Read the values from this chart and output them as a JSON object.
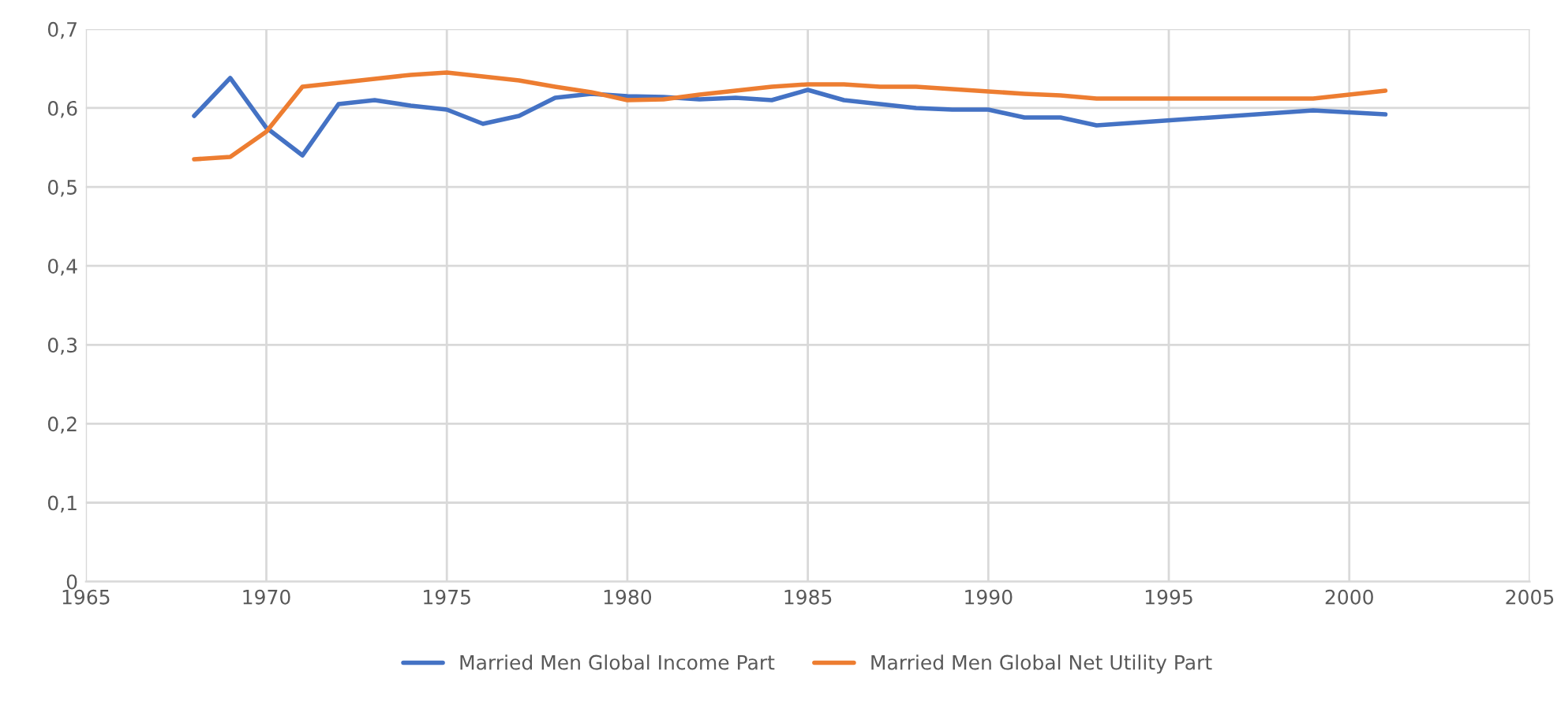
{
  "chart_data": {
    "type": "line",
    "xlim": [
      1965,
      2005
    ],
    "xticks": [
      1965,
      1970,
      1975,
      1980,
      1985,
      1990,
      1995,
      2000,
      2005
    ],
    "ylim": [
      0,
      0.7
    ],
    "yticks": [
      {
        "value": 0,
        "label": "0"
      },
      {
        "value": 0.1,
        "label": "0,1"
      },
      {
        "value": 0.2,
        "label": "0,2"
      },
      {
        "value": 0.3,
        "label": "0,3"
      },
      {
        "value": 0.4,
        "label": "0,4"
      },
      {
        "value": 0.5,
        "label": "0,5"
      },
      {
        "value": 0.6,
        "label": "0,6"
      },
      {
        "value": 0.7,
        "label": "0,7"
      }
    ],
    "grid": true,
    "legend": "bottom",
    "marker": "none",
    "series": [
      {
        "name": "Married Men Global Income Part",
        "color": "#4472c4",
        "x": [
          1968,
          1969,
          1970,
          1971,
          1972,
          1973,
          1974,
          1975,
          1976,
          1977,
          1978,
          1979,
          1980,
          1981,
          1982,
          1983,
          1984,
          1985,
          1986,
          1987,
          1988,
          1989,
          1990,
          1991,
          1992,
          1993,
          1999,
          2001
        ],
        "values": [
          0.59,
          0.638,
          0.575,
          0.54,
          0.605,
          0.61,
          0.603,
          0.598,
          0.58,
          0.59,
          0.613,
          0.618,
          0.615,
          0.614,
          0.611,
          0.613,
          0.61,
          0.623,
          0.61,
          0.605,
          0.6,
          0.598,
          0.598,
          0.588,
          0.588,
          0.578,
          0.597,
          0.592
        ]
      },
      {
        "name": "Married Men Global Net Utility Part",
        "color": "#ed7d31",
        "x": [
          1968,
          1969,
          1970,
          1971,
          1972,
          1973,
          1974,
          1975,
          1976,
          1977,
          1978,
          1979,
          1980,
          1981,
          1982,
          1983,
          1984,
          1985,
          1986,
          1987,
          1988,
          1989,
          1990,
          1991,
          1992,
          1993,
          1999,
          2001
        ],
        "values": [
          0.535,
          0.538,
          0.57,
          0.627,
          0.632,
          0.637,
          0.642,
          0.645,
          0.64,
          0.635,
          0.627,
          0.62,
          0.61,
          0.611,
          0.617,
          0.622,
          0.627,
          0.63,
          0.63,
          0.627,
          0.627,
          0.624,
          0.621,
          0.618,
          0.616,
          0.612,
          0.612,
          0.622
        ]
      }
    ]
  }
}
